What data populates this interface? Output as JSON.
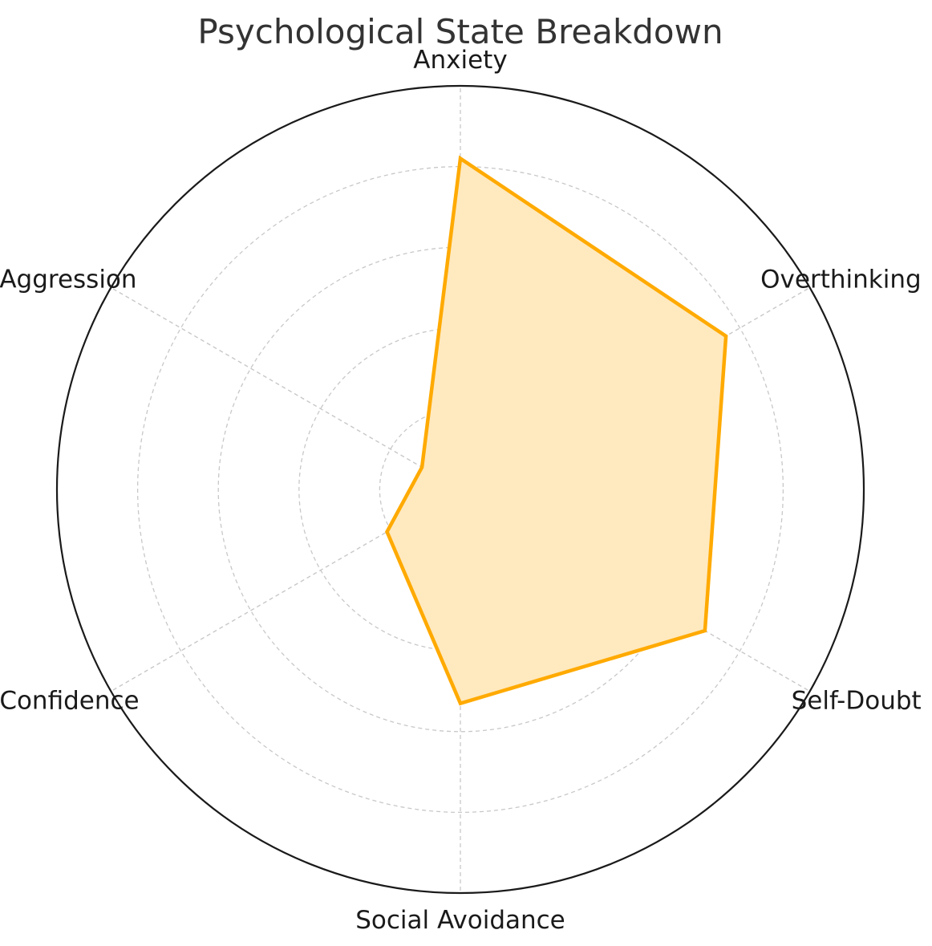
{
  "chart_data": {
    "type": "radar",
    "title": "Psychological State Breakdown",
    "categories": [
      "Anxiety",
      "Overthinking",
      "Self-Doubt",
      "Social Avoidance",
      "Confidence",
      "Aggression"
    ],
    "series": [
      {
        "values": [
          8.2,
          7.6,
          7.0,
          5.3,
          2.1,
          1.1
        ]
      }
    ],
    "rlim": [
      0,
      10
    ],
    "r_gridlines": [
      2,
      4,
      6,
      8
    ],
    "grid": true,
    "colors": {
      "series_line": "#FFAA00",
      "series_fill": "#FFE9BF",
      "outer_circle": "#1a1a1a",
      "grid": "#c8c8c8",
      "title": "#333333",
      "labels": "#1a1a1a"
    }
  }
}
